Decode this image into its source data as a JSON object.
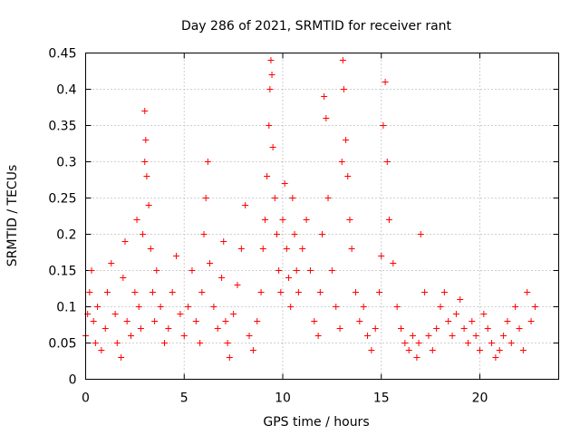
{
  "chart_data": {
    "type": "scatter",
    "title": "Day 286 of 2021, SRMTID for receiver rant",
    "xlabel": "GPS time / hours",
    "ylabel": "SRMTID / TECUs",
    "xlim": [
      0,
      24
    ],
    "ylim": [
      0,
      0.45
    ],
    "xticks": [
      0,
      5,
      10,
      15,
      20
    ],
    "xtick_labels": [
      "0",
      "5",
      "10",
      "15",
      "20"
    ],
    "yticks": [
      0,
      0.05,
      0.1,
      0.15,
      0.2,
      0.25,
      0.3,
      0.35,
      0.4,
      0.45
    ],
    "ytick_labels": [
      "0",
      "0.05",
      "0.1",
      "0.15",
      "0.2",
      "0.25",
      "0.3",
      "0.35",
      "0.4",
      "0.45"
    ],
    "grid": true,
    "marker": "+",
    "color": "#ff0000",
    "series": [
      {
        "name": "SRMTID",
        "x": [
          0.0,
          0.1,
          0.2,
          0.3,
          0.4,
          0.5,
          0.6,
          0.8,
          1.0,
          1.1,
          1.3,
          1.5,
          1.6,
          1.8,
          1.9,
          2.0,
          2.1,
          2.3,
          2.5,
          2.6,
          2.7,
          2.8,
          2.9,
          3.0,
          3.0,
          3.05,
          3.1,
          3.2,
          3.3,
          3.4,
          3.5,
          3.6,
          3.8,
          4.0,
          4.2,
          4.4,
          4.6,
          4.8,
          5.0,
          5.2,
          5.4,
          5.6,
          5.8,
          5.9,
          6.0,
          6.1,
          6.2,
          6.3,
          6.5,
          6.7,
          6.9,
          7.0,
          7.1,
          7.2,
          7.3,
          7.5,
          7.7,
          7.9,
          8.1,
          8.3,
          8.5,
          8.7,
          8.9,
          9.0,
          9.1,
          9.2,
          9.3,
          9.35,
          9.4,
          9.45,
          9.5,
          9.6,
          9.7,
          9.8,
          9.9,
          10.0,
          10.1,
          10.2,
          10.3,
          10.4,
          10.5,
          10.6,
          10.7,
          10.8,
          11.0,
          11.2,
          11.4,
          11.6,
          11.8,
          11.9,
          12.0,
          12.1,
          12.2,
          12.3,
          12.5,
          12.7,
          12.9,
          13.0,
          13.05,
          13.1,
          13.2,
          13.3,
          13.4,
          13.5,
          13.7,
          13.9,
          14.1,
          14.3,
          14.5,
          14.7,
          14.9,
          15.0,
          15.1,
          15.2,
          15.3,
          15.4,
          15.6,
          15.8,
          16.0,
          16.2,
          16.4,
          16.6,
          16.8,
          16.9,
          17.0,
          17.2,
          17.4,
          17.6,
          17.8,
          18.0,
          18.2,
          18.4,
          18.6,
          18.8,
          19.0,
          19.2,
          19.4,
          19.6,
          19.8,
          20.0,
          20.2,
          20.4,
          20.6,
          20.8,
          21.0,
          21.2,
          21.4,
          21.6,
          21.8,
          22.0,
          22.2,
          22.4,
          22.6,
          22.8
        ],
        "y": [
          0.06,
          0.09,
          0.12,
          0.15,
          0.08,
          0.05,
          0.1,
          0.04,
          0.07,
          0.12,
          0.16,
          0.09,
          0.05,
          0.03,
          0.14,
          0.19,
          0.08,
          0.06,
          0.12,
          0.22,
          0.1,
          0.07,
          0.2,
          0.3,
          0.37,
          0.33,
          0.28,
          0.24,
          0.18,
          0.12,
          0.08,
          0.15,
          0.1,
          0.05,
          0.07,
          0.12,
          0.17,
          0.09,
          0.06,
          0.1,
          0.15,
          0.08,
          0.05,
          0.12,
          0.2,
          0.25,
          0.3,
          0.16,
          0.1,
          0.07,
          0.14,
          0.19,
          0.08,
          0.05,
          0.03,
          0.09,
          0.13,
          0.18,
          0.24,
          0.06,
          0.04,
          0.08,
          0.12,
          0.18,
          0.22,
          0.28,
          0.35,
          0.4,
          0.44,
          0.42,
          0.32,
          0.25,
          0.2,
          0.15,
          0.12,
          0.22,
          0.27,
          0.18,
          0.14,
          0.1,
          0.25,
          0.2,
          0.15,
          0.12,
          0.18,
          0.22,
          0.15,
          0.08,
          0.06,
          0.12,
          0.2,
          0.39,
          0.36,
          0.25,
          0.15,
          0.1,
          0.07,
          0.3,
          0.44,
          0.4,
          0.33,
          0.28,
          0.22,
          0.18,
          0.12,
          0.08,
          0.1,
          0.06,
          0.04,
          0.07,
          0.12,
          0.17,
          0.35,
          0.41,
          0.3,
          0.22,
          0.16,
          0.1,
          0.07,
          0.05,
          0.04,
          0.06,
          0.03,
          0.05,
          0.2,
          0.12,
          0.06,
          0.04,
          0.07,
          0.1,
          0.12,
          0.08,
          0.06,
          0.09,
          0.11,
          0.07,
          0.05,
          0.08,
          0.06,
          0.04,
          0.09,
          0.07,
          0.05,
          0.03,
          0.04,
          0.06,
          0.08,
          0.05,
          0.1,
          0.07,
          0.04,
          0.12,
          0.08,
          0.1
        ]
      }
    ]
  }
}
